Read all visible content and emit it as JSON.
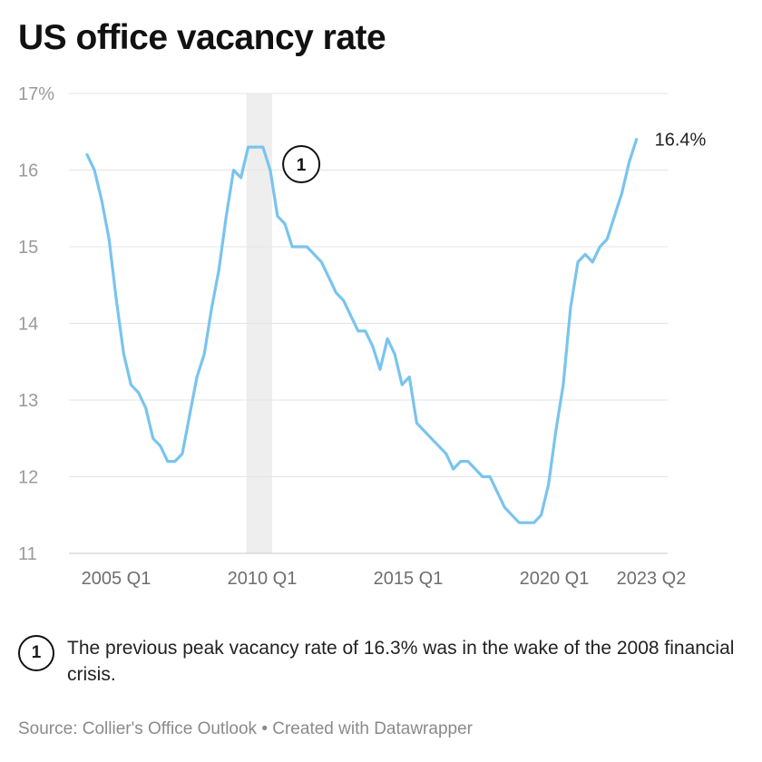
{
  "title": "US office vacancy rate",
  "note": {
    "marker": "1",
    "text": "The previous peak vacancy rate of 16.3% was in the wake of the 2008 financial crisis."
  },
  "source": "Source: Collier's Office Outlook • Created with Datawrapper",
  "chart_data": {
    "type": "line",
    "title": "US office vacancy rate",
    "xlabel": "",
    "ylabel": "",
    "y_tick_labels": [
      "17%",
      "16",
      "15",
      "14",
      "13",
      "12",
      "11"
    ],
    "y_ticks": [
      17,
      16,
      15,
      14,
      13,
      12,
      11
    ],
    "x_tick_labels": [
      "2005 Q1",
      "2010 Q1",
      "2015 Q1",
      "2020 Q1",
      "2023 Q2"
    ],
    "ylim": [
      11,
      17
    ],
    "grid": true,
    "line_color": "#79c4ee",
    "highlight_band": {
      "from": "2010 Q1",
      "to": "2010 Q4",
      "color": "#eeeeee"
    },
    "annotation": {
      "marker": "1",
      "at": "2011 Q3",
      "value": 16.1
    },
    "end_label": "16.4%",
    "series": [
      {
        "x": [
          "2004 Q3",
          "2004 Q4",
          "2005 Q1",
          "2005 Q2",
          "2005 Q3",
          "2005 Q4",
          "2006 Q1",
          "2006 Q2",
          "2006 Q3",
          "2006 Q4",
          "2007 Q1",
          "2007 Q2",
          "2007 Q3",
          "2007 Q4",
          "2008 Q1",
          "2008 Q2",
          "2008 Q3",
          "2008 Q4",
          "2009 Q1",
          "2009 Q2",
          "2009 Q3",
          "2009 Q4",
          "2010 Q1",
          "2010 Q2",
          "2010 Q3",
          "2010 Q4",
          "2011 Q1",
          "2011 Q2",
          "2011 Q3",
          "2011 Q4",
          "2012 Q1",
          "2012 Q2",
          "2012 Q3",
          "2012 Q4",
          "2013 Q1",
          "2013 Q2",
          "2013 Q3",
          "2013 Q4",
          "2014 Q1",
          "2014 Q2",
          "2014 Q3",
          "2014 Q4",
          "2015 Q1",
          "2015 Q2",
          "2015 Q3",
          "2015 Q4",
          "2016 Q1",
          "2016 Q2",
          "2016 Q3",
          "2016 Q4",
          "2017 Q1",
          "2017 Q2",
          "2017 Q3",
          "2017 Q4",
          "2018 Q1",
          "2018 Q2",
          "2018 Q3",
          "2018 Q4",
          "2019 Q1",
          "2019 Q2",
          "2019 Q3",
          "2019 Q4",
          "2020 Q1",
          "2020 Q2",
          "2020 Q3",
          "2020 Q4",
          "2021 Q1",
          "2021 Q2",
          "2021 Q3",
          "2021 Q4",
          "2022 Q1",
          "2022 Q2",
          "2022 Q3",
          "2022 Q4",
          "2023 Q1",
          "2023 Q2"
        ],
        "values": [
          16.2,
          16.0,
          15.6,
          15.1,
          14.3,
          13.6,
          13.2,
          13.1,
          12.9,
          12.5,
          12.4,
          12.2,
          12.2,
          12.3,
          12.8,
          13.3,
          13.6,
          14.2,
          14.7,
          15.4,
          16.0,
          15.9,
          16.3,
          16.3,
          16.3,
          16.0,
          15.4,
          15.3,
          15.0,
          15.0,
          15.0,
          14.9,
          14.8,
          14.6,
          14.4,
          14.3,
          14.1,
          13.9,
          13.9,
          13.7,
          13.4,
          13.8,
          13.6,
          13.2,
          13.3,
          12.7,
          12.6,
          12.5,
          12.4,
          12.3,
          12.1,
          12.2,
          12.2,
          12.1,
          12.0,
          12.0,
          11.8,
          11.6,
          11.5,
          11.4,
          11.4,
          11.4,
          11.5,
          11.9,
          12.6,
          13.2,
          14.2,
          14.8,
          14.9,
          14.8,
          15.0,
          15.1,
          15.4,
          15.7,
          16.1,
          16.4
        ]
      }
    ]
  }
}
